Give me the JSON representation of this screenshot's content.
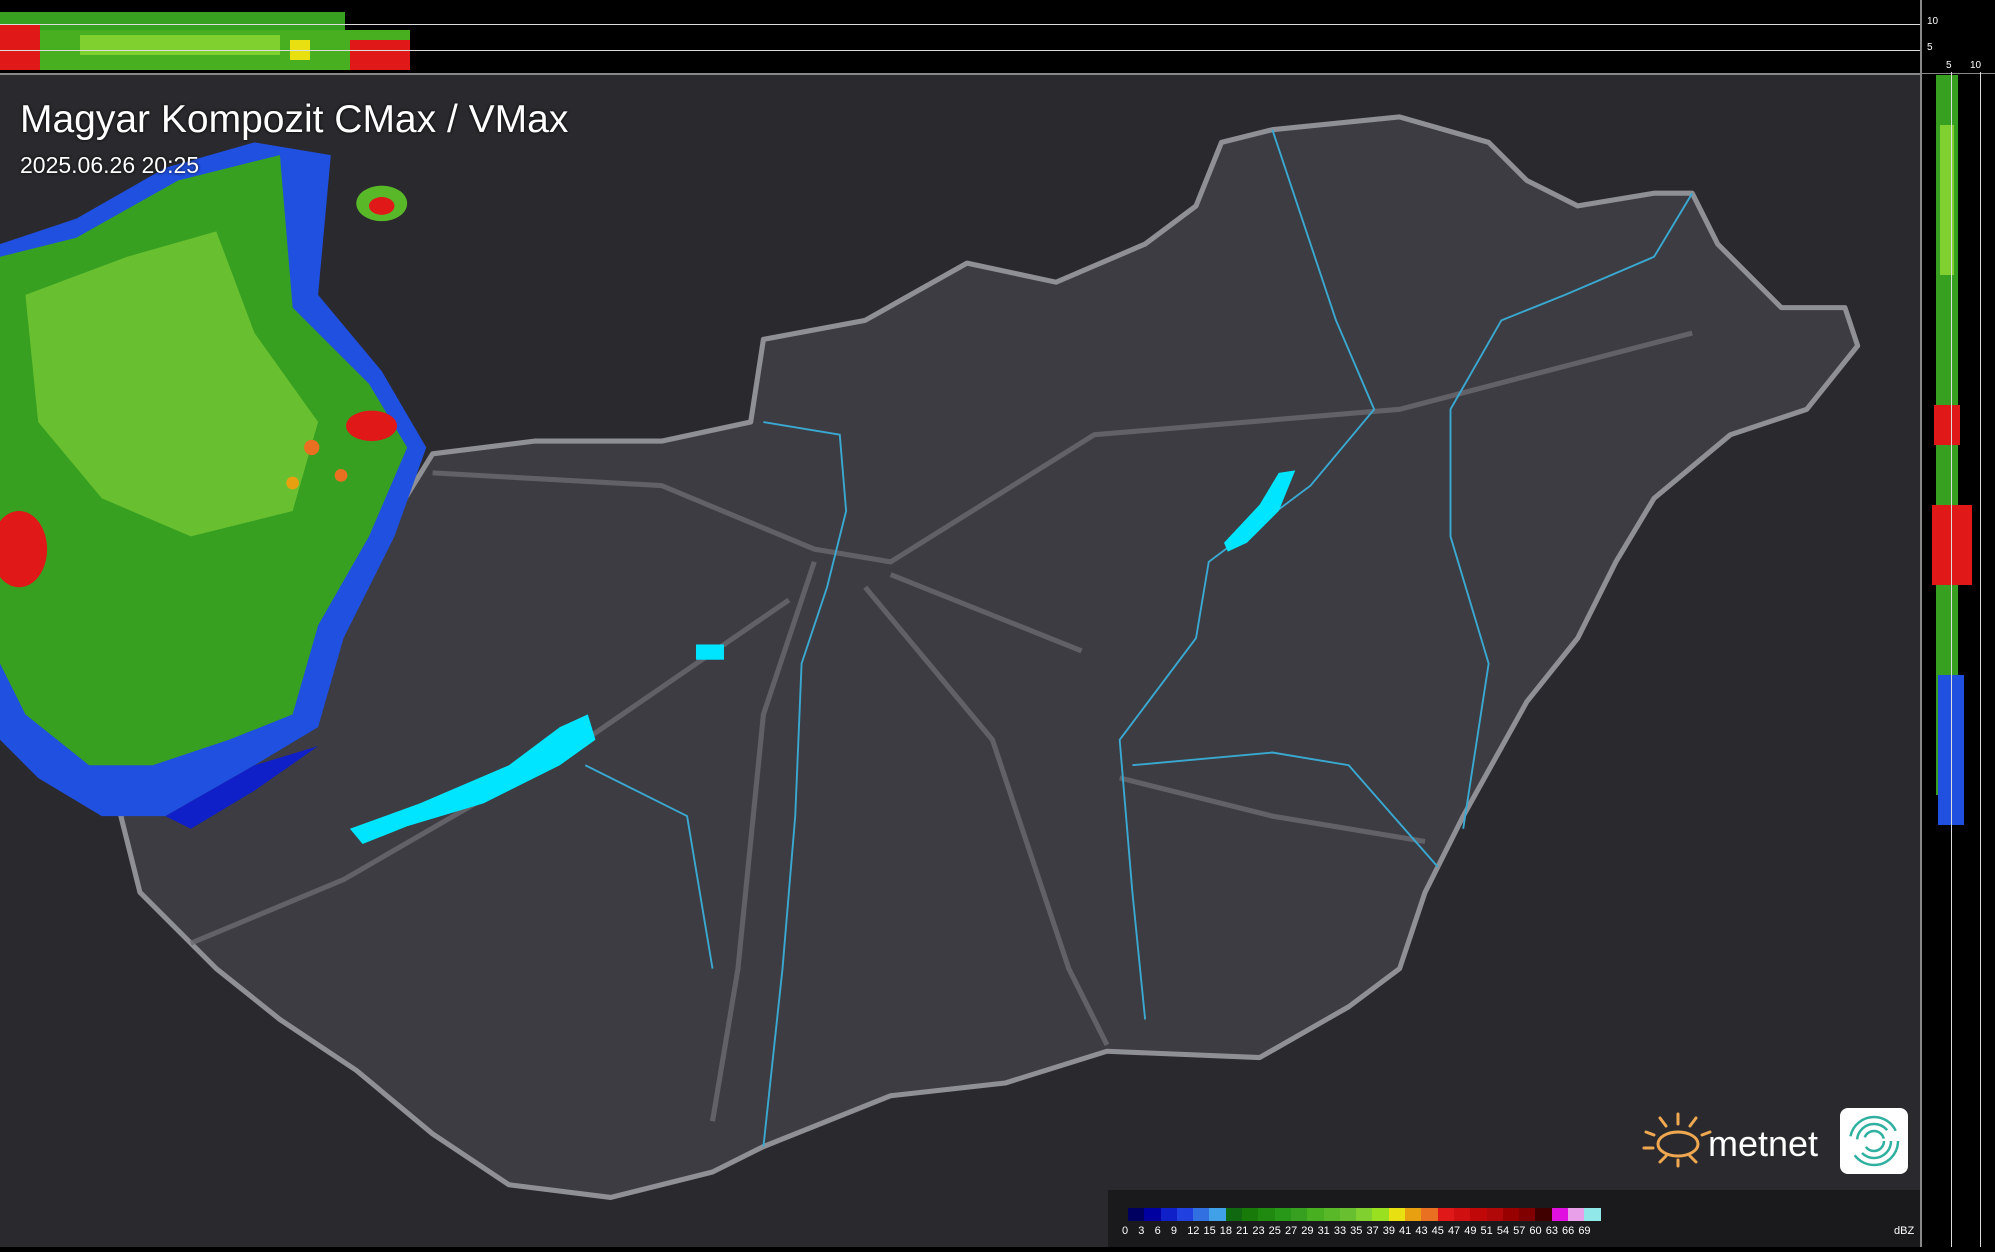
{
  "header": {
    "title": "Magyar Kompozit CMax / VMax",
    "timestamp": "2025.06.26 20:25"
  },
  "top_profile": {
    "axis_labels": [
      "10",
      "5"
    ]
  },
  "right_profile": {
    "axis_labels": [
      "5",
      "10"
    ]
  },
  "legend": {
    "unit": "dBZ",
    "labels": [
      "0",
      "3",
      "6",
      "9",
      "12",
      "15",
      "18",
      "21",
      "23",
      "25",
      "27",
      "29",
      "31",
      "33",
      "35",
      "37",
      "39",
      "41",
      "43",
      "45",
      "47",
      "49",
      "51",
      "54",
      "57",
      "60",
      "63",
      "66",
      "69"
    ],
    "colors": [
      "#000060",
      "#0000a0",
      "#1020c8",
      "#2040e0",
      "#3070e0",
      "#40a0e8",
      "#106810",
      "#187a08",
      "#208a10",
      "#289818",
      "#38a020",
      "#48b020",
      "#58b828",
      "#68c030",
      "#80d030",
      "#98e020",
      "#e8e010",
      "#e8a010",
      "#e87020",
      "#e01818",
      "#d01010",
      "#c00808",
      "#b00808",
      "#980000",
      "#800000",
      "#400000",
      "#e010e0",
      "#e8a0e8",
      "#90e8e8"
    ]
  },
  "branding": {
    "logo_text": "metnet"
  },
  "colors": {
    "background": "#2a2a2e",
    "country": "#3a3a40",
    "border": "#9a9aa0",
    "water": "#00e5ff",
    "rivers": "#3aa8d0"
  }
}
